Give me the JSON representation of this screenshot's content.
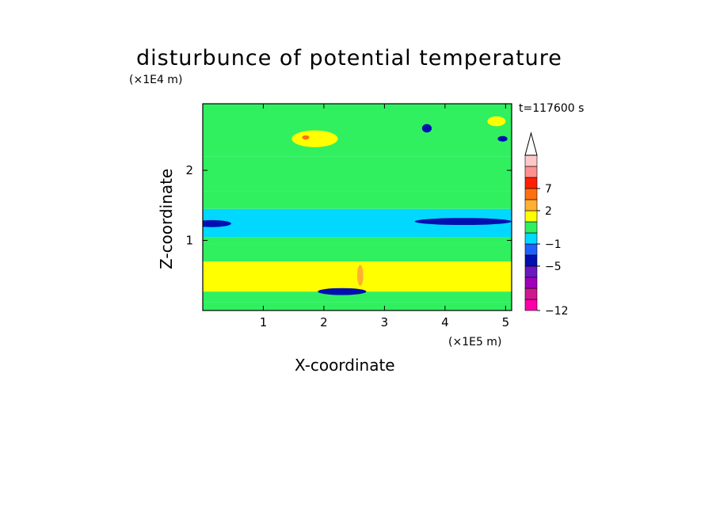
{
  "chart_data": {
    "type": "heatmap",
    "title": "disturbunce of potential temperature",
    "xlabel": "X-coordinate",
    "ylabel": "Z-coordinate",
    "x_unit": "(×1E5 m)",
    "y_unit": "(×1E4 m)",
    "time_label": "t=117600 s",
    "xlim": [
      0,
      5.1
    ],
    "ylim": [
      0,
      2.95
    ],
    "x_ticks": [
      1,
      2,
      3,
      4,
      5
    ],
    "y_ticks": [
      1,
      2
    ],
    "colorbar_labels": [
      "7",
      "2",
      "−1",
      "−5",
      "−12"
    ],
    "colorbar_label_levels": [
      7,
      2,
      -1,
      -5,
      -12
    ],
    "colorbar_extend_max": true,
    "colorbar_colors": [
      "#ff00a8",
      "#d0188e",
      "#a000b8",
      "#6a18c0",
      "#0010b0",
      "#2060ff",
      "#00d8ff",
      "#30f060",
      "#ffff00",
      "#ffb030",
      "#ff7010",
      "#ff2000",
      "#ff9090",
      "#ffc8c8"
    ],
    "bands": [
      {
        "z": [
          0.0,
          0.12
        ],
        "value": 0
      },
      {
        "z": [
          0.12,
          0.27
        ],
        "value": 0.5
      },
      {
        "z": [
          0.27,
          0.7
        ],
        "value": 1.5
      },
      {
        "z": [
          0.7,
          0.95
        ],
        "value": 0.5
      },
      {
        "z": [
          0.95,
          1.05
        ],
        "value": 0
      },
      {
        "z": [
          1.05,
          1.45
        ],
        "value": -1
      },
      {
        "z": [
          1.45,
          1.7
        ],
        "value": 0
      },
      {
        "z": [
          1.7,
          2.2
        ],
        "value": 0.5
      },
      {
        "z": [
          2.2,
          2.95
        ],
        "value": 0
      }
    ],
    "features": [
      {
        "x": 0.15,
        "z": 1.24,
        "rx": 0.32,
        "rz": 0.05,
        "value": -4
      },
      {
        "x": 4.3,
        "z": 1.27,
        "rx": 0.8,
        "rz": 0.05,
        "value": -4
      },
      {
        "x": 2.3,
        "z": 0.27,
        "rx": 0.4,
        "rz": 0.05,
        "value": -4
      },
      {
        "x": 1.85,
        "z": 2.45,
        "rx": 0.38,
        "rz": 0.12,
        "value": 1.5
      },
      {
        "x": 1.7,
        "z": 2.47,
        "rx": 0.06,
        "rz": 0.03,
        "value": 5
      },
      {
        "x": 4.85,
        "z": 2.7,
        "rx": 0.15,
        "rz": 0.07,
        "value": 1.5
      },
      {
        "x": 3.7,
        "z": 2.6,
        "rx": 0.08,
        "rz": 0.06,
        "value": -4
      },
      {
        "x": 4.95,
        "z": 2.45,
        "rx": 0.08,
        "rz": 0.04,
        "value": -4
      },
      {
        "x": 2.6,
        "z": 0.5,
        "rx": 0.05,
        "rz": 0.15,
        "value": 3
      }
    ]
  }
}
